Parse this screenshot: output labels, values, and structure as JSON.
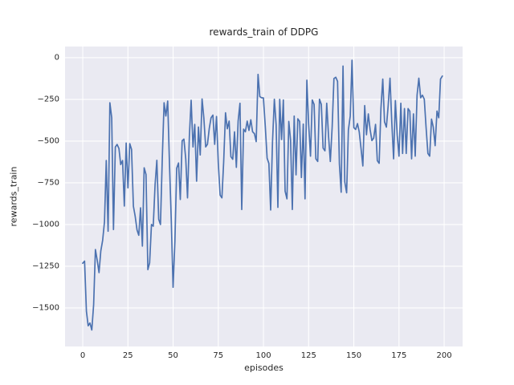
{
  "title": "rewards_train of DDPG",
  "x_axis": {
    "label": "episodes",
    "tick_values": [
      0,
      25,
      50,
      75,
      100,
      125,
      150,
      175,
      200
    ],
    "tick_labels": [
      "0",
      "25",
      "50",
      "75",
      "100",
      "125",
      "150",
      "175",
      "200"
    ]
  },
  "y_axis": {
    "label": "rewards_train",
    "tick_values": [
      0,
      -250,
      -500,
      -750,
      -1000,
      -1250,
      -1500
    ],
    "tick_labels": [
      "0",
      "−250",
      "−500",
      "−750",
      "−1000",
      "−1250",
      "−1500"
    ]
  },
  "colors": {
    "figure_bg": "#ffffff",
    "axes_bg": "#eaeaf2",
    "grid": "#ffffff",
    "line": "#4c72b0",
    "text": "#262626"
  },
  "chart_data": {
    "type": "line",
    "title": "rewards_train of DDPG",
    "xlabel": "episodes",
    "ylabel": "rewards_train",
    "style": "seaborn-darkgrid",
    "grid": true,
    "legend": false,
    "xlim": [
      -9.8,
      210.2
    ],
    "ylim": [
      -1731,
      67
    ],
    "x": {
      "start": 0,
      "step": 1,
      "count": 200
    },
    "series": [
      {
        "name": "rewards_train",
        "color": "#4c72b0",
        "values": [
          -1232,
          -1219,
          -1520,
          -1607,
          -1590,
          -1632,
          -1480,
          -1150,
          -1216,
          -1288,
          -1159,
          -1095,
          -984,
          -616,
          -1040,
          -270,
          -360,
          -1030,
          -536,
          -520,
          -544,
          -640,
          -616,
          -889,
          -512,
          -780,
          -515,
          -550,
          -890,
          -950,
          -1032,
          -1064,
          -900,
          -1129,
          -660,
          -700,
          -1270,
          -1230,
          -1000,
          -1010,
          -760,
          -615,
          -968,
          -1000,
          -600,
          -270,
          -350,
          -260,
          -633,
          -980,
          -1376,
          -1100,
          -663,
          -631,
          -850,
          -498,
          -488,
          -607,
          -840,
          -470,
          -255,
          -535,
          -400,
          -740,
          -415,
          -583,
          -247,
          -360,
          -535,
          -519,
          -423,
          -360,
          -344,
          -519,
          -352,
          -632,
          -824,
          -840,
          -625,
          -330,
          -426,
          -380,
          -593,
          -609,
          -444,
          -657,
          -380,
          -273,
          -910,
          -428,
          -444,
          -380,
          -436,
          -372,
          -444,
          -455,
          -503,
          -100,
          -233,
          -240,
          -241,
          -410,
          -602,
          -634,
          -913,
          -505,
          -249,
          -400,
          -897,
          -250,
          -490,
          -253,
          -800,
          -846,
          -382,
          -494,
          -910,
          -350,
          -702,
          -366,
          -382,
          -718,
          -398,
          -846,
          -135,
          -398,
          -590,
          -253,
          -280,
          -606,
          -622,
          -249,
          -280,
          -542,
          -558,
          -273,
          -471,
          -622,
          -414,
          -125,
          -117,
          -142,
          -638,
          -806,
          -50,
          -745,
          -810,
          -433,
          -350,
          -15,
          -419,
          -430,
          -395,
          -445,
          -547,
          -649,
          -287,
          -462,
          -337,
          -430,
          -497,
          -481,
          -400,
          -617,
          -633,
          -305,
          -128,
          -385,
          -416,
          -289,
          -123,
          -385,
          -606,
          -257,
          -465,
          -590,
          -273,
          -574,
          -305,
          -574,
          -305,
          -321,
          -606,
          -337,
          -590,
          -225,
          -123,
          -240,
          -225,
          -249,
          -416,
          -574,
          -590,
          -368,
          -416,
          -527,
          -320,
          -360,
          -128,
          -110
        ]
      }
    ]
  }
}
